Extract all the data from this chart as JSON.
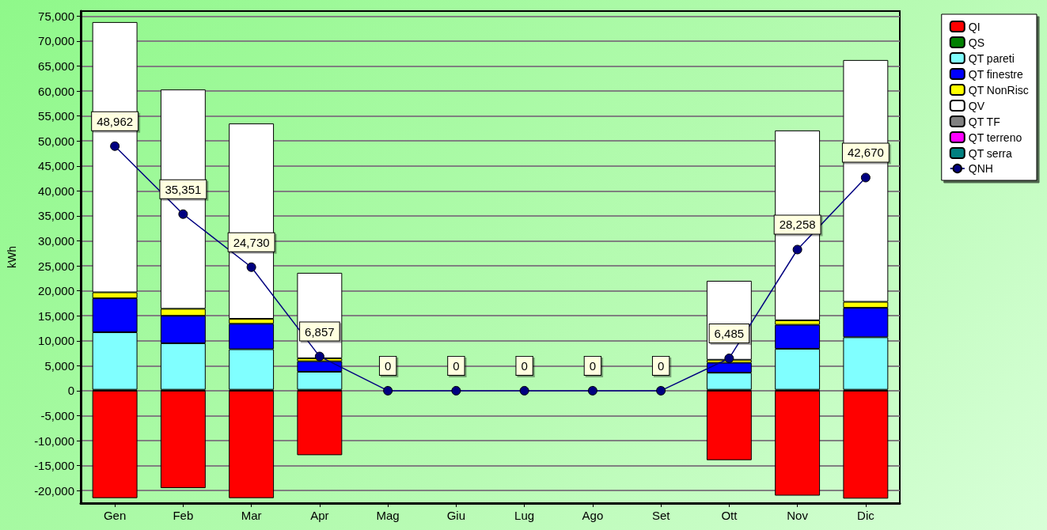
{
  "chart_data": {
    "type": "bar",
    "stacked": true,
    "ylabel": "kWh",
    "grid": "y",
    "legend": "right",
    "categories": [
      "Gen",
      "Feb",
      "Mar",
      "Apr",
      "Mag",
      "Giu",
      "Lug",
      "Ago",
      "Set",
      "Ott",
      "Nov",
      "Dic"
    ],
    "ylim": [
      -22500,
      76000
    ],
    "yticks": [
      {
        "value": -20000,
        "label": "-20,000"
      },
      {
        "value": -15000,
        "label": "-15,000"
      },
      {
        "value": -10000,
        "label": "-10,000"
      },
      {
        "value": -5000,
        "label": "-5,000"
      },
      0,
      {
        "value": 5000,
        "label": "5,000"
      },
      {
        "value": 10000,
        "label": "10,000"
      },
      {
        "value": 15000,
        "label": "15,000"
      },
      {
        "value": 20000,
        "label": "20,000"
      },
      {
        "value": 25000,
        "label": "25,000"
      },
      {
        "value": 30000,
        "label": "30,000"
      },
      {
        "value": 35000,
        "label": "35,000"
      },
      {
        "value": 40000,
        "label": "40,000"
      },
      {
        "value": 45000,
        "label": "45,000"
      },
      {
        "value": 50000,
        "label": "50,000"
      },
      {
        "value": 55000,
        "label": "55,000"
      },
      {
        "value": 60000,
        "label": "60,000"
      },
      {
        "value": 65000,
        "label": "65,000"
      },
      {
        "value": 70000,
        "label": "70,000"
      },
      {
        "value": 75000,
        "label": "75,000"
      }
    ],
    "series": [
      {
        "name": "QI",
        "color": "#ff0000",
        "values": [
          -21500,
          -19500,
          -21500,
          -12900,
          0,
          0,
          0,
          0,
          0,
          -13900,
          -21000,
          -21600
        ]
      },
      {
        "name": "QS",
        "color": "#008000",
        "values": [
          200,
          200,
          200,
          200,
          0,
          0,
          0,
          0,
          0,
          200,
          200,
          200
        ]
      },
      {
        "name": "QT pareti",
        "color": "#80ffff",
        "values": [
          11500,
          9300,
          8100,
          3600,
          0,
          0,
          0,
          0,
          0,
          3400,
          8200,
          10500
        ]
      },
      {
        "name": "QT finestre",
        "color": "#0000ff",
        "values": [
          6800,
          5500,
          5100,
          2100,
          0,
          0,
          0,
          0,
          0,
          2000,
          4800,
          5900
        ]
      },
      {
        "name": "QT NonRisc",
        "color": "#ffff00",
        "values": [
          1200,
          1400,
          1000,
          600,
          0,
          0,
          0,
          0,
          0,
          600,
          900,
          1200
        ]
      },
      {
        "name": "QV",
        "color": "#ffffff",
        "values": [
          54100,
          43900,
          39100,
          17100,
          0,
          0,
          0,
          0,
          0,
          15800,
          38000,
          48400
        ]
      },
      {
        "name": "QT TF",
        "color": "#808080",
        "values": [
          0,
          0,
          0,
          0,
          0,
          0,
          0,
          0,
          0,
          0,
          0,
          0
        ]
      },
      {
        "name": "QT terreno",
        "color": "#ff00ff",
        "values": [
          0,
          0,
          0,
          0,
          0,
          0,
          0,
          0,
          0,
          0,
          0,
          0
        ]
      },
      {
        "name": "QT serra",
        "color": "#008080",
        "values": [
          0,
          0,
          0,
          0,
          0,
          0,
          0,
          0,
          0,
          0,
          0,
          0
        ]
      },
      {
        "name": "QNH",
        "type": "line",
        "color": "#000080",
        "marker": "circle",
        "values": [
          48962,
          35351,
          24730,
          6857,
          0,
          0,
          0,
          0,
          0,
          6485,
          28258,
          42670
        ],
        "value_labels": [
          "48,962",
          "35,351",
          "24,730",
          "6,857",
          "0",
          "0",
          "0",
          "0",
          "0",
          "6,485",
          "28,258",
          "42,670"
        ]
      }
    ]
  }
}
